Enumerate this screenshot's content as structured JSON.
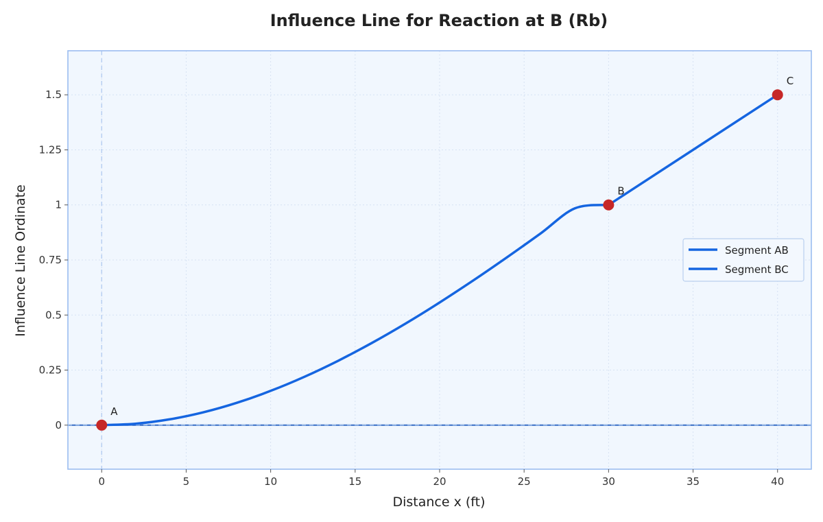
{
  "chart_data": {
    "type": "line",
    "title": "Influence Line for Reaction at B (Rb)",
    "xlabel": "Distance x (ft)",
    "ylabel": "Influence Line Ordinate",
    "xlim": [
      -2,
      42
    ],
    "ylim": [
      -0.2,
      1.7
    ],
    "xticks": [
      0,
      5,
      10,
      15,
      20,
      25,
      30,
      35,
      40
    ],
    "yticks": [
      0,
      0.25,
      0.5,
      0.75,
      1,
      1.25,
      1.5
    ],
    "xtick_labels": [
      "0",
      "5",
      "10",
      "15",
      "20",
      "25",
      "30",
      "35",
      "40"
    ],
    "ytick_labels": [
      "0",
      "0.25",
      "0.5",
      "0.75",
      "1",
      "1.25",
      "1.5"
    ],
    "grid": true,
    "legend_position": "center-right",
    "series": [
      {
        "name": "Segment AB",
        "color": "#1565e0",
        "x": [
          0,
          2,
          4,
          6,
          8,
          10,
          12,
          14,
          16,
          18,
          20,
          22,
          24,
          26,
          28,
          30
        ],
        "y": [
          0,
          0.0066,
          0.0261,
          0.058,
          0.1014,
          0.1556,
          0.2196,
          0.2925,
          0.3736,
          0.462,
          0.5569,
          0.6574,
          0.7627,
          0.8719,
          0.9843,
          1.0
        ]
      },
      {
        "name": "Segment BC",
        "color": "#1565e0",
        "x": [
          30,
          40
        ],
        "y": [
          1.0,
          1.5
        ]
      }
    ],
    "points": [
      {
        "label": "A",
        "x": 0,
        "y": 0
      },
      {
        "label": "B",
        "x": 30,
        "y": 1.0
      },
      {
        "label": "C",
        "x": 40,
        "y": 1.5
      }
    ],
    "point_color": "#c62828"
  }
}
